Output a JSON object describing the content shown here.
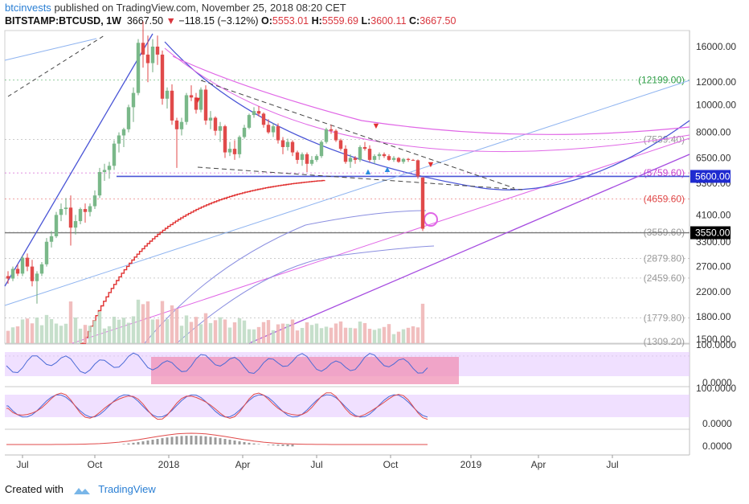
{
  "header": {
    "author": "btcinvests",
    "published": "published on TradingView.com, November 25, 2018 08:20 CET",
    "symbol": "BITSTAMP:BTCUSD, 1W",
    "last": "3667.50",
    "change": "−118.15 (−3.12%)",
    "o_label": "O:",
    "o_val": "5553.01",
    "h_label": "H:",
    "h_val": "5559.69",
    "l_label": "L:",
    "l_val": "3600.11",
    "c_label": "C:",
    "c_val": "3667.50"
  },
  "footer": {
    "created": "Created with",
    "brand": "TradingView"
  },
  "colors": {
    "up": "#8fbf9a",
    "down": "#e04a4a",
    "accent": "#2a7fd4",
    "purple": "#a64ce0",
    "magenta": "#e066e6",
    "blue": "#4a55d6",
    "osc_band": "#e6ccff",
    "osc_highlight": "#f08ab0"
  },
  "chart_data": {
    "type": "line",
    "title": "",
    "scale": "log",
    "price_ticks": [
      "16000.00",
      "12000.00",
      "10000.00",
      "8000.00",
      "6500.00",
      "5300.00",
      "4100.00",
      "3300.00",
      "2700.00",
      "2200.00",
      "1800.00",
      "1500.00"
    ],
    "level_labels": [
      {
        "text": "(12199.00)",
        "price": 12199,
        "color": "#2e9e46"
      },
      {
        "text": "(7539.40)",
        "price": 7539.4,
        "color": "#9a9a9a"
      },
      {
        "text": "(5759.60)",
        "price": 5759.6,
        "color": "#cc44cc"
      },
      {
        "text": "(4659.60)",
        "price": 4659.6,
        "color": "#e04a4a"
      },
      {
        "text": "(3559.60)",
        "price": 3559.6,
        "color": "#9a9a9a"
      },
      {
        "text": "(2879.80)",
        "price": 2879.8,
        "color": "#9a9a9a"
      },
      {
        "text": "(2459.60)",
        "price": 2459.6,
        "color": "#9a9a9a"
      },
      {
        "text": "(1779.80)",
        "price": 1779.8,
        "color": "#9a9a9a"
      },
      {
        "text": "(1309.20)",
        "price": 1309.2,
        "color": "#9a9a9a"
      }
    ],
    "price_tags": [
      {
        "text": "5600.00",
        "price": 5600,
        "color": "#1f2bd0"
      },
      {
        "text": "3550.00",
        "price": 3550,
        "color": "#000000"
      }
    ],
    "rsi_ticks": [
      "100.0000",
      "0.0000"
    ],
    "stoch_ticks": [
      "100.0000",
      "0.0000"
    ],
    "macd_ticks": [
      "0.0000"
    ],
    "x_ticks": [
      "Jul",
      "Oct",
      "2018",
      "Apr",
      "Jul",
      "Oct",
      "2019",
      "Apr",
      "Jul"
    ],
    "series": [
      {
        "type": "candles",
        "values": [
          [
            2500,
            2600,
            2350,
            2450
          ],
          [
            2450,
            2700,
            2400,
            2650
          ],
          [
            2650,
            2750,
            2500,
            2550
          ],
          [
            2550,
            2950,
            2500,
            2900
          ],
          [
            2900,
            3000,
            2600,
            2700
          ],
          [
            2700,
            2850,
            2300,
            2400
          ],
          [
            2400,
            2600,
            2000,
            2550
          ],
          [
            2550,
            2800,
            2500,
            2750
          ],
          [
            2750,
            3400,
            2700,
            3300
          ],
          [
            3300,
            3600,
            3150,
            3450
          ],
          [
            3450,
            4200,
            3400,
            4100
          ],
          [
            4100,
            4500,
            3900,
            4300
          ],
          [
            4300,
            4700,
            4100,
            4350
          ],
          [
            4350,
            4800,
            3200,
            3700
          ],
          [
            3700,
            4100,
            3500,
            3900
          ],
          [
            3900,
            4350,
            3800,
            4300
          ],
          [
            4300,
            4500,
            3850,
            4200
          ],
          [
            4200,
            4500,
            4050,
            4400
          ],
          [
            4400,
            5000,
            4300,
            4800
          ],
          [
            4800,
            6000,
            4700,
            5800
          ],
          [
            5800,
            6200,
            5400,
            5900
          ],
          [
            5900,
            6300,
            5500,
            6100
          ],
          [
            6100,
            7500,
            5900,
            7300
          ],
          [
            7300,
            8000,
            6800,
            7800
          ],
          [
            7800,
            8300,
            7100,
            8200
          ],
          [
            8200,
            10000,
            8000,
            9800
          ],
          [
            9800,
            11500,
            8700,
            11000
          ],
          [
            11000,
            17000,
            10800,
            16500
          ],
          [
            16500,
            19600,
            13500,
            15000
          ],
          [
            15000,
            17500,
            12000,
            14000
          ],
          [
            14000,
            17000,
            13000,
            16000
          ],
          [
            16000,
            17500,
            13800,
            15000
          ],
          [
            15000,
            15500,
            10000,
            10500
          ],
          [
            10500,
            11500,
            9700,
            11200
          ],
          [
            11200,
            11800,
            8500,
            8800
          ],
          [
            8800,
            9000,
            6000,
            8200
          ],
          [
            8200,
            9000,
            7800,
            8700
          ],
          [
            8700,
            11000,
            8500,
            10800
          ],
          [
            10800,
            11700,
            10300,
            10600
          ],
          [
            10600,
            11000,
            9300,
            9600
          ],
          [
            9600,
            11500,
            9400,
            11300
          ],
          [
            11300,
            11700,
            8500,
            8800
          ],
          [
            8800,
            9500,
            8200,
            9000
          ],
          [
            9000,
            9100,
            7800,
            8100
          ],
          [
            8100,
            8700,
            7400,
            8400
          ],
          [
            8400,
            8500,
            6500,
            6800
          ],
          [
            6800,
            7400,
            6600,
            7000
          ],
          [
            7000,
            7500,
            6400,
            6700
          ],
          [
            6700,
            7800,
            6500,
            7700
          ],
          [
            7700,
            8500,
            7600,
            8300
          ],
          [
            8300,
            9300,
            8200,
            9200
          ],
          [
            9200,
            9800,
            9000,
            9500
          ],
          [
            9500,
            9900,
            9100,
            9300
          ],
          [
            9300,
            9400,
            8300,
            8500
          ],
          [
            8500,
            8900,
            7900,
            8000
          ],
          [
            8000,
            8600,
            7700,
            8400
          ],
          [
            8400,
            8600,
            7300,
            7500
          ],
          [
            7500,
            7700,
            6700,
            7100
          ],
          [
            7100,
            7600,
            6900,
            7400
          ],
          [
            7400,
            7500,
            6600,
            6800
          ],
          [
            6800,
            6900,
            6200,
            6400
          ],
          [
            6400,
            6800,
            6100,
            6700
          ],
          [
            6700,
            6800,
            5800,
            6200
          ],
          [
            6200,
            6600,
            6100,
            6400
          ],
          [
            6400,
            6700,
            6300,
            6600
          ],
          [
            6600,
            7500,
            6500,
            7400
          ],
          [
            7400,
            8300,
            7300,
            8200
          ],
          [
            8200,
            8500,
            7900,
            8100
          ],
          [
            8100,
            8200,
            7400,
            7500
          ],
          [
            7500,
            7600,
            6900,
            7000
          ],
          [
            7000,
            7200,
            6200,
            6300
          ],
          [
            6300,
            6700,
            6000,
            6500
          ],
          [
            6500,
            6600,
            6200,
            6400
          ],
          [
            6400,
            7200,
            6300,
            7100
          ],
          [
            7100,
            7400,
            6900,
            7000
          ],
          [
            7000,
            7200,
            6300,
            6400
          ],
          [
            6400,
            6700,
            6200,
            6600
          ],
          [
            6600,
            6800,
            6400,
            6700
          ],
          [
            6700,
            6800,
            6500,
            6600
          ],
          [
            6600,
            6700,
            6350,
            6400
          ],
          [
            6400,
            6600,
            6300,
            6500
          ],
          [
            6500,
            6550,
            6250,
            6300
          ],
          [
            6300,
            6500,
            6200,
            6450
          ],
          [
            6450,
            6500,
            6300,
            6400
          ],
          [
            6400,
            6450,
            6350,
            6380
          ],
          [
            6380,
            6420,
            5500,
            5600
          ],
          [
            5553,
            5560,
            3600,
            3667
          ]
        ]
      }
    ]
  }
}
